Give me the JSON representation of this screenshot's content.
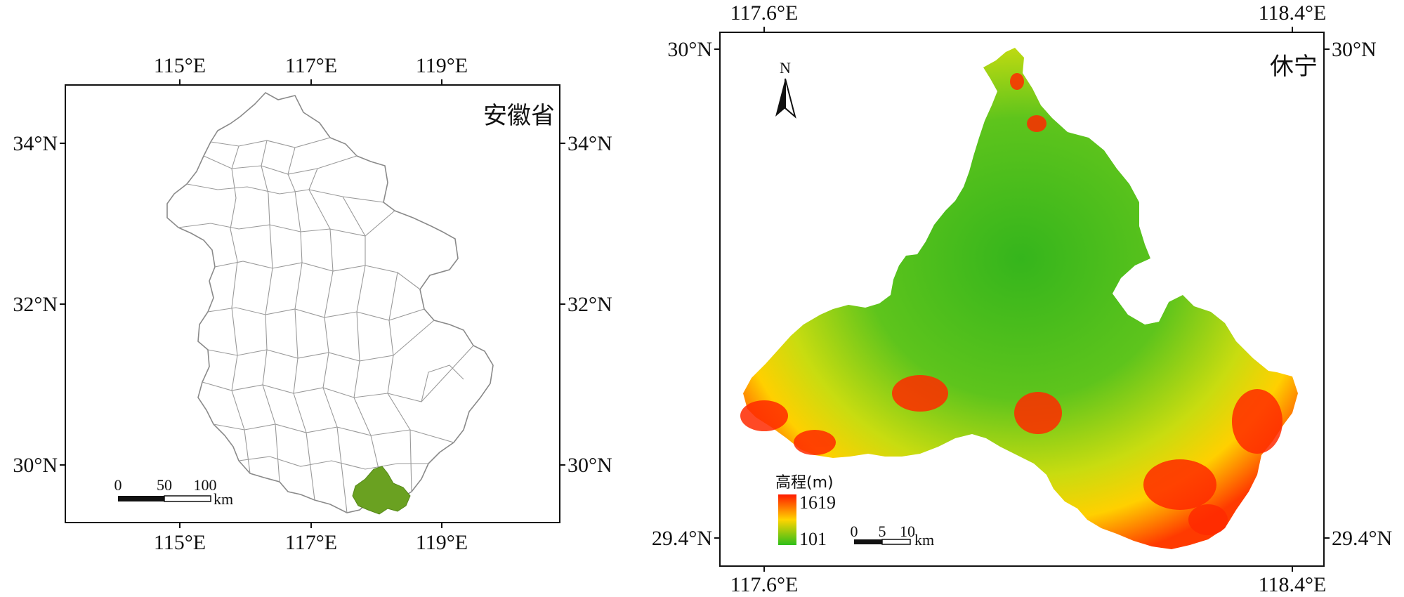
{
  "left_map": {
    "title": "安徽省",
    "top_lon_labels": [
      "115°E",
      "117°E",
      "119°E"
    ],
    "bottom_lon_labels": [
      "115°E",
      "117°E",
      "119°E"
    ],
    "left_lat_labels": [
      "34°N",
      "32°N",
      "30°N"
    ],
    "right_lat_labels": [
      "34°N",
      "32°N",
      "30°N"
    ],
    "scale_bar": {
      "ticks": [
        "0",
        "50",
        "100"
      ],
      "unit": "km"
    },
    "highlight_color": "#6aa121"
  },
  "right_map": {
    "title": "休宁",
    "top_lon_labels": [
      "117.6°E",
      "118.4°E"
    ],
    "bottom_lon_labels": [
      "117.6°E",
      "118.4°E"
    ],
    "left_lat_labels": [
      "30°N",
      "29.4°N"
    ],
    "right_lat_labels": [
      "30°N",
      "29.4°N"
    ],
    "north_arrow": "N",
    "legend": {
      "title": "高程(m)",
      "max": "1619",
      "min": "101",
      "colors": [
        "#ff1a00",
        "#ffd400",
        "#2fbf1a"
      ]
    },
    "scale_bar": {
      "ticks": [
        "0",
        "5",
        "10"
      ],
      "unit": "km"
    }
  }
}
